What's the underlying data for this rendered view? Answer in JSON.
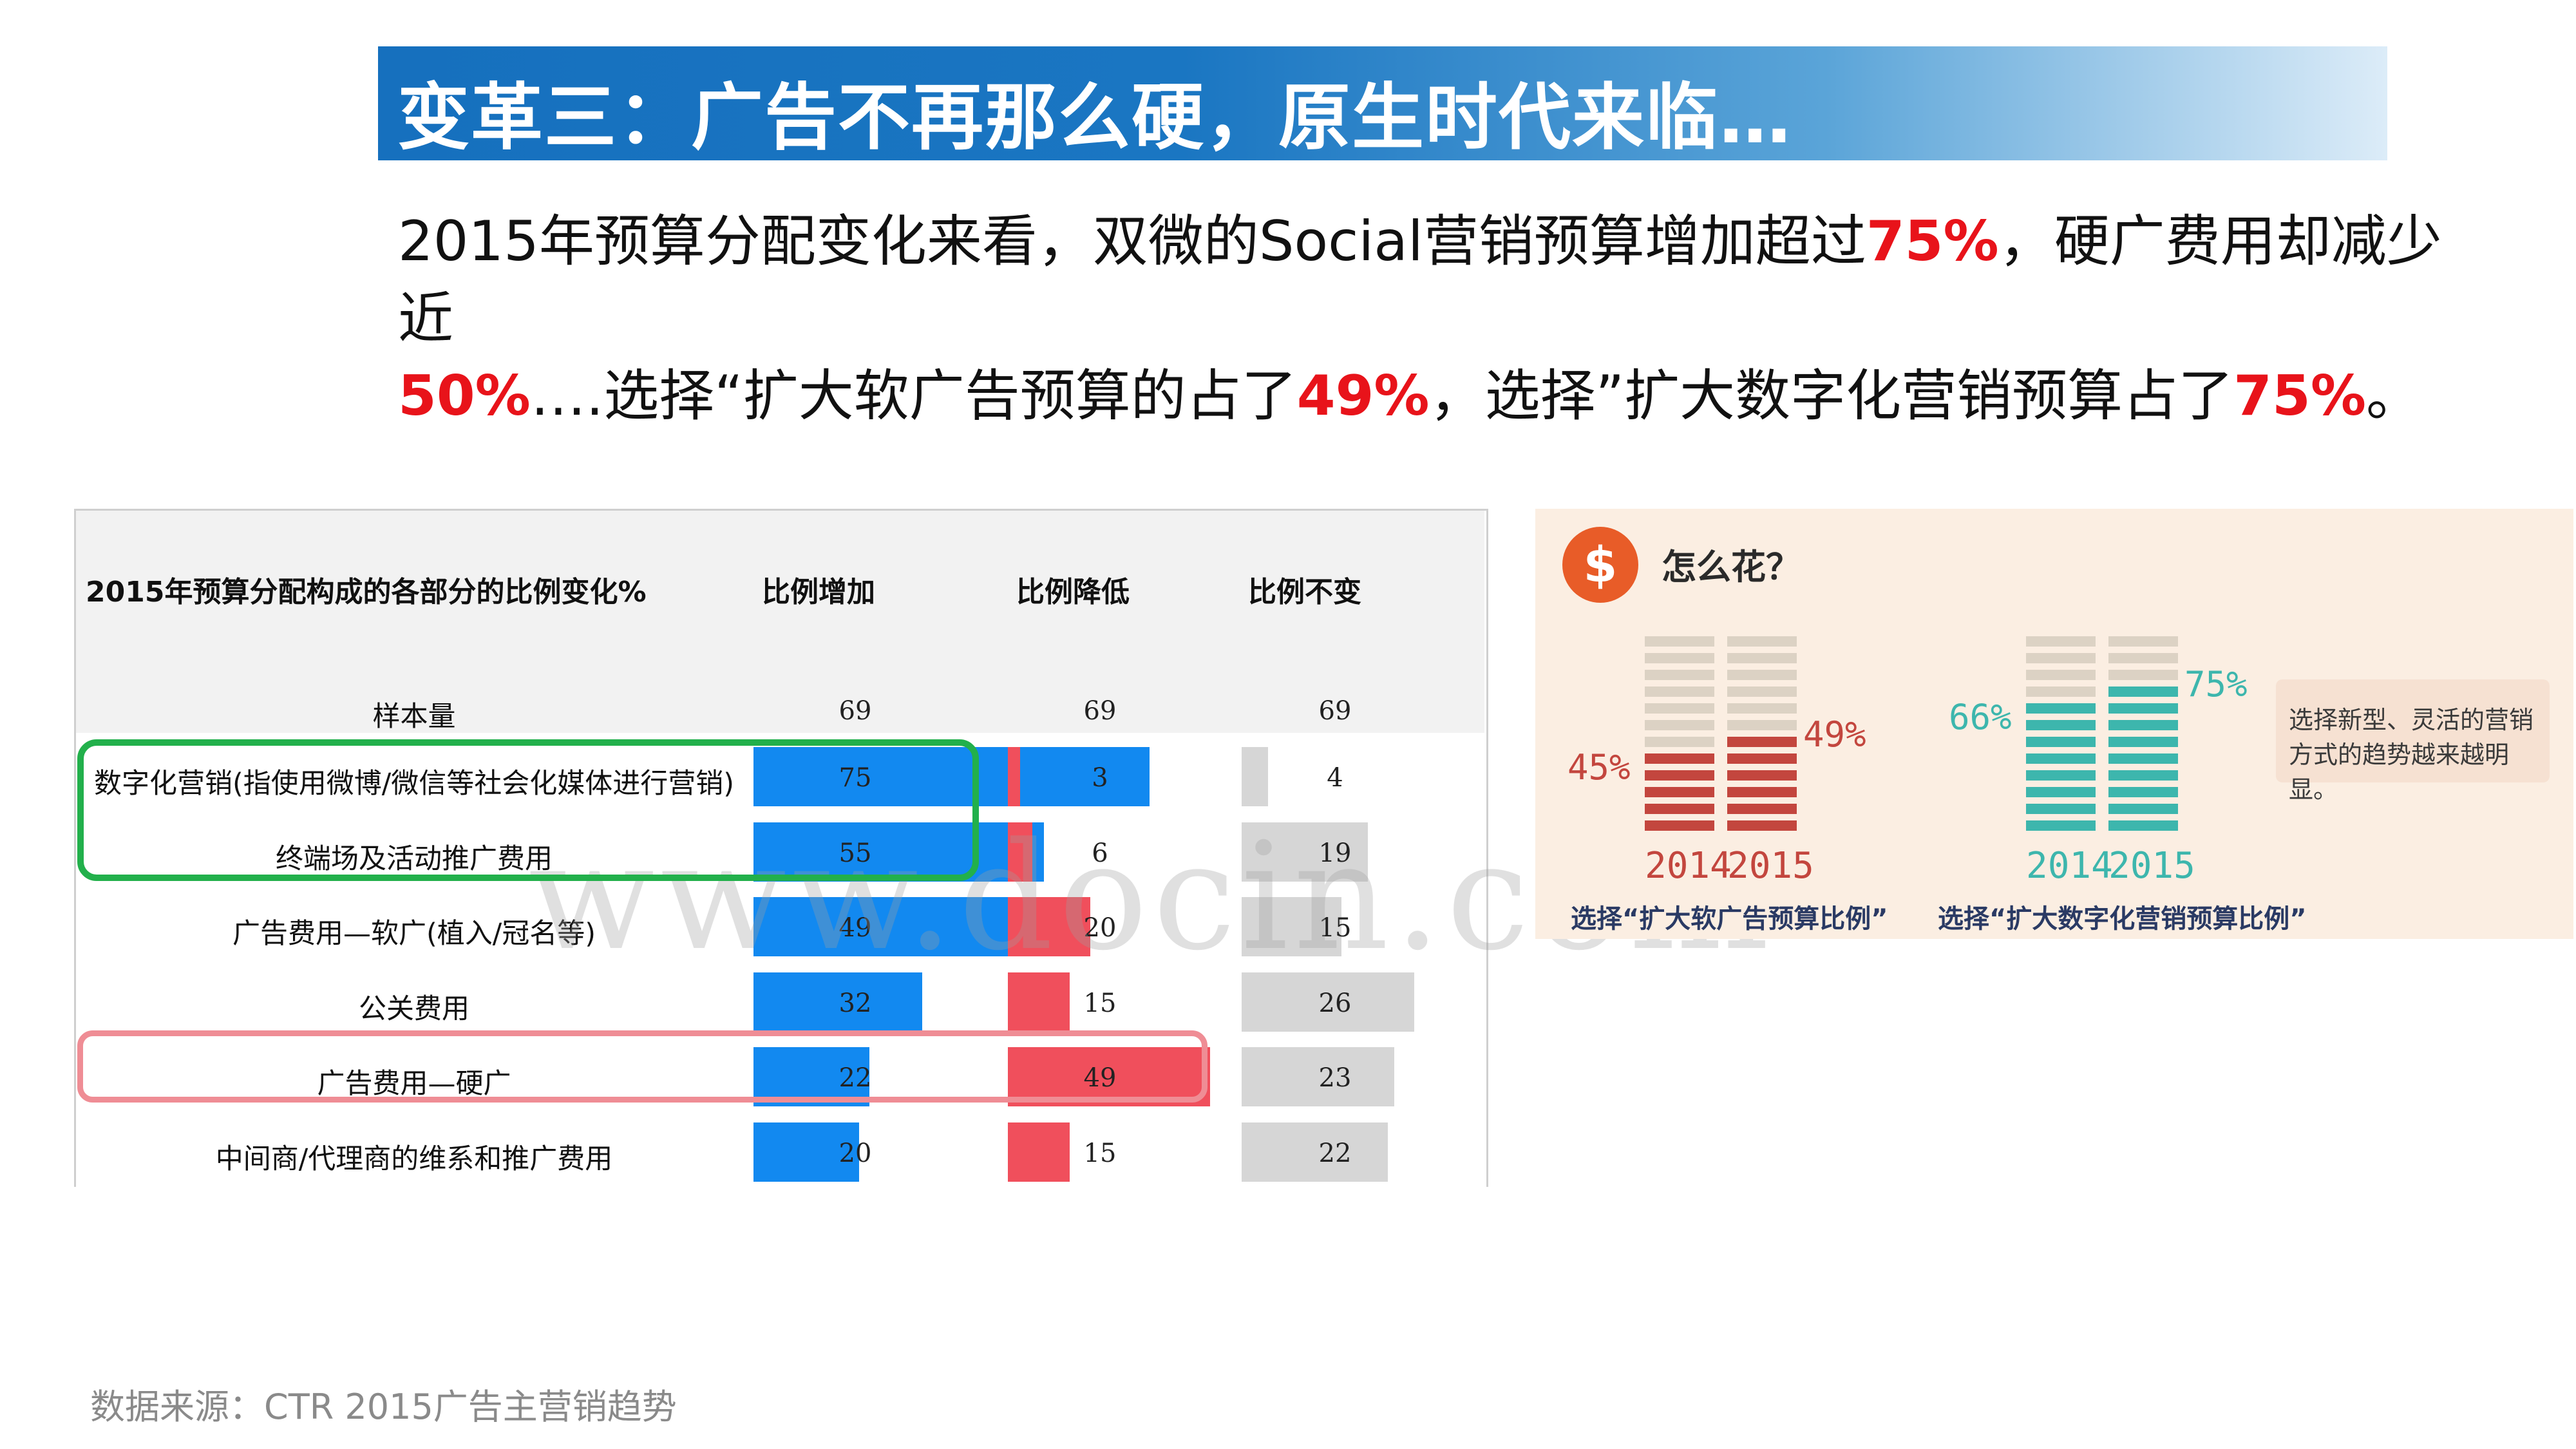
{
  "title": "变革三：广告不再那么硬，原生时代来临…",
  "intro": {
    "p1": "2015年预算分配变化来看，双微的Social营销预算增加超过",
    "h1": "75%",
    "p2": "，硬广费用却减少近",
    "h2": "50%",
    "p3": "….选择“扩大软广告预算的占了",
    "h3": "49%",
    "p4": "，选择”扩大数字化营销预算占了",
    "h4": "75%",
    "p5": "。"
  },
  "source": "数据来源：CTR 2015广告主营销趋势",
  "watermark": "www.docin.com",
  "colors": {
    "increase": "#1289f0",
    "decrease": "#f04f5c",
    "unchanged": "#d6d6d6",
    "highlight_red": "#e8131a",
    "green_box": "#22b04b"
  },
  "chart_data": [
    {
      "type": "bar",
      "title": "2015年预算分配构成的各部分的比例变化%",
      "columns": [
        "比例增加",
        "比例降低",
        "比例不变"
      ],
      "sample": {
        "label": "样本量",
        "values": [
          69,
          69,
          69
        ]
      },
      "categories": [
        "数字化营销(指使用微博/微信等社会化媒体进行营销)",
        "终端场及活动推广费用",
        "广告费用—软广(植入/冠名等)",
        "公关费用",
        "广告费用—硬广",
        "中间商/代理商的维系和推广费用"
      ],
      "series": [
        {
          "name": "比例增加",
          "values": [
            75,
            55,
            49,
            32,
            22,
            20
          ]
        },
        {
          "name": "比例降低",
          "values": [
            3,
            6,
            20,
            15,
            49,
            15
          ]
        },
        {
          "name": "比例不变",
          "values": [
            4,
            19,
            15,
            26,
            23,
            22
          ]
        }
      ]
    },
    {
      "type": "bar",
      "header": "怎么花？",
      "note": "选择新型、灵活的营销方式的趋势越来越明显。",
      "groups": [
        {
          "caption": "选择“扩大软广告预算比例”",
          "categories": [
            "2014",
            "2015"
          ],
          "values": [
            45,
            49
          ],
          "labels": [
            "45%",
            "49%"
          ],
          "color": "#c3463e"
        },
        {
          "caption": "选择“扩大数字化营销预算比例”",
          "categories": [
            "2014",
            "2015"
          ],
          "values": [
            66,
            75
          ],
          "labels": [
            "66%",
            "75%"
          ],
          "color": "#3db6ad"
        }
      ]
    }
  ]
}
